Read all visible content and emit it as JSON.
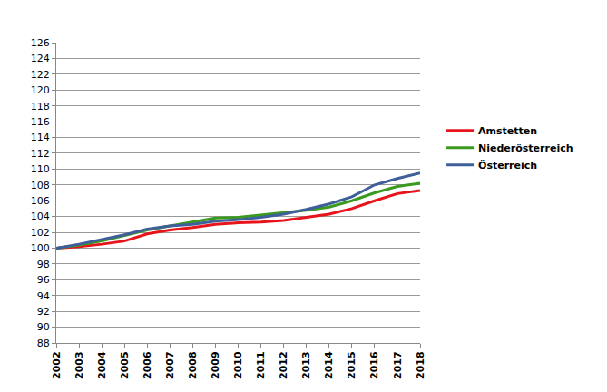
{
  "chart_data": {
    "type": "line",
    "x": [
      2002,
      2003,
      2004,
      2005,
      2006,
      2007,
      2008,
      2009,
      2010,
      2011,
      2012,
      2013,
      2014,
      2015,
      2016,
      2017,
      2018
    ],
    "series": [
      {
        "name": "Amstetten",
        "color": "#e8141b",
        "values": [
          100,
          100.2,
          100.5,
          100.9,
          101.8,
          102.3,
          102.6,
          103.0,
          103.2,
          103.3,
          103.5,
          103.9,
          104.3,
          105.0,
          106.0,
          106.9,
          107.3
        ]
      },
      {
        "name": "Niederösterreich",
        "color": "#3a9a1e",
        "values": [
          100,
          100.4,
          100.9,
          101.6,
          102.3,
          102.8,
          103.3,
          103.8,
          103.9,
          104.2,
          104.5,
          104.8,
          105.2,
          106.0,
          107.0,
          107.8,
          108.2
        ]
      },
      {
        "name": "Österreich",
        "color": "#3e5f9a",
        "values": [
          100,
          100.5,
          101.1,
          101.7,
          102.4,
          102.8,
          103.0,
          103.4,
          103.6,
          103.9,
          104.3,
          104.9,
          105.6,
          106.5,
          108.0,
          108.8,
          109.5
        ]
      }
    ],
    "xlim": [
      2002,
      2018
    ],
    "xticks": [
      2002,
      2003,
      2004,
      2005,
      2006,
      2007,
      2008,
      2009,
      2010,
      2011,
      2012,
      2013,
      2014,
      2015,
      2016,
      2017,
      2018
    ],
    "ylim": [
      88,
      126
    ],
    "yticks": [
      88,
      90,
      92,
      94,
      96,
      98,
      100,
      102,
      104,
      106,
      108,
      110,
      112,
      114,
      116,
      118,
      120,
      122,
      124,
      126
    ],
    "grid": true,
    "legend": "right"
  }
}
